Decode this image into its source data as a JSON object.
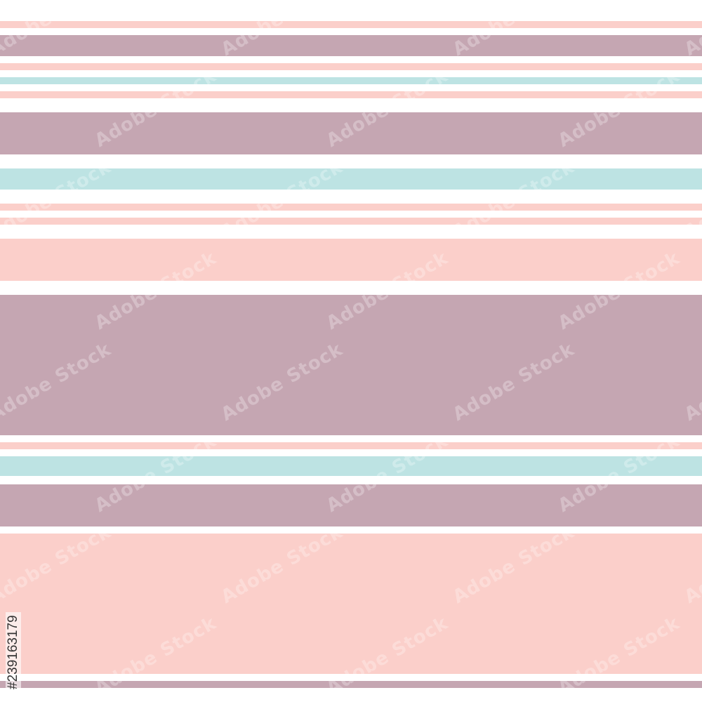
{
  "pattern": {
    "name": "",
    "palette": {
      "white": "#ffffff",
      "pink": "#fbcfca",
      "mauve": "#c5a6b2",
      "aqua": "#bde3e3"
    },
    "stripe_colors": [
      "pink",
      "mauve",
      "pink",
      "aqua",
      "pink",
      "mauve",
      "aqua",
      "pink",
      "pink",
      "pink",
      "mauve",
      "pink",
      "aqua",
      "mauve",
      "pink",
      "mauve"
    ]
  },
  "watermark": {
    "text": "Adobe Stock"
  },
  "stock_id": "#239163179"
}
